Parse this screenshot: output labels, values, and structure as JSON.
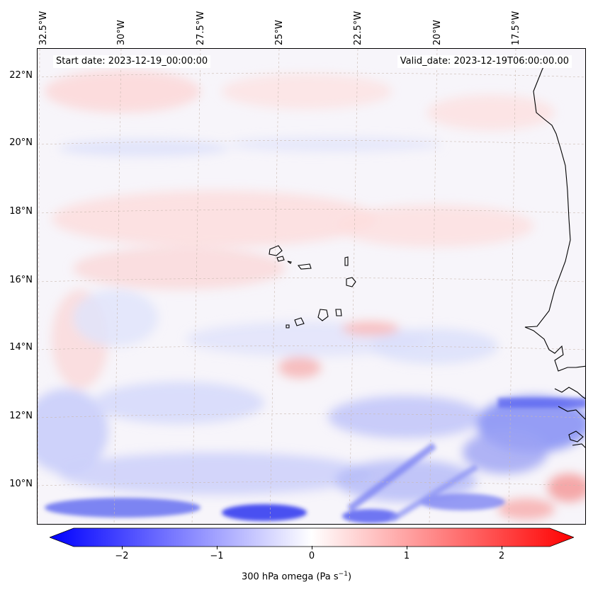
{
  "map": {
    "start_label": "Start date: 2023-12-19_00:00:00",
    "valid_label": "Valid_date: 2023-12-19T06:00:00.00",
    "lon_labels": [
      "32.5°W",
      "30°W",
      "27.5°W",
      "25°W",
      "22.5°W",
      "20°W",
      "17.5°W"
    ],
    "lat_labels": [
      "22°N",
      "20°N",
      "18°N",
      "16°N",
      "14°N",
      "12°N",
      "10°N"
    ],
    "field": "300 hPa omega",
    "colors": {
      "negative": "#0000ff",
      "zero": "#ffffff",
      "positive": "#ff0000",
      "coast": "#000000",
      "grid": "#b0a090"
    }
  },
  "colorbar": {
    "ticks": [
      "−2",
      "−1",
      "0",
      "1",
      "2"
    ],
    "tick_values": [
      -2,
      -1,
      0,
      1,
      2
    ],
    "range": [
      -2.75,
      2.75
    ],
    "label": "300 hPa omega (Pa s",
    "label_sup": "−1",
    "label_end": ")"
  }
}
